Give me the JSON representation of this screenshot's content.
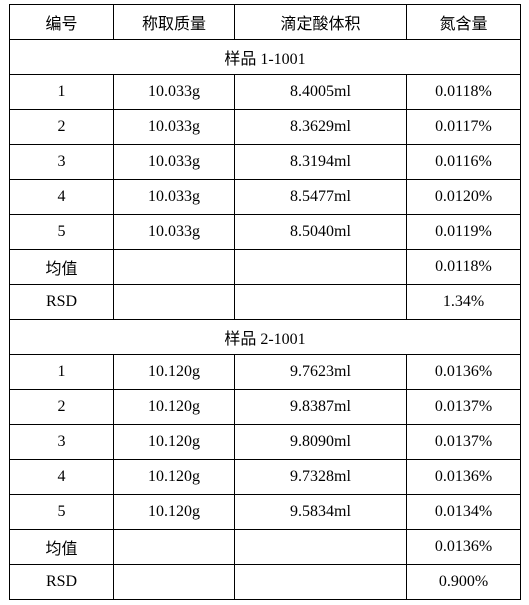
{
  "table": {
    "header": [
      "编号",
      "称取质量",
      "滴定酸体积",
      "氮含量"
    ],
    "sections": [
      {
        "title": "样品 1-1001",
        "rows": [
          [
            "1",
            "10.033g",
            "8.4005ml",
            "0.0118%"
          ],
          [
            "2",
            "10.033g",
            "8.3629ml",
            "0.0117%"
          ],
          [
            "3",
            "10.033g",
            "8.3194ml",
            "0.0116%"
          ],
          [
            "4",
            "10.033g",
            "8.5477ml",
            "0.0120%"
          ],
          [
            "5",
            "10.033g",
            "8.5040ml",
            "0.0119%"
          ],
          [
            "均值",
            null,
            null,
            "0.0118%"
          ],
          [
            "RSD",
            null,
            null,
            "1.34%"
          ]
        ]
      },
      {
        "title": "样品 2-1001",
        "rows": [
          [
            "1",
            "10.120g",
            "9.7623ml",
            "0.0136%"
          ],
          [
            "2",
            "10.120g",
            "9.8387ml",
            "0.0137%"
          ],
          [
            "3",
            "10.120g",
            "9.8090ml",
            "0.0137%"
          ],
          [
            "4",
            "10.120g",
            "9.7328ml",
            "0.0136%"
          ],
          [
            "5",
            "10.120g",
            "9.5834ml",
            "0.0134%"
          ],
          [
            "均值",
            null,
            null,
            "0.0136%"
          ],
          [
            "RSD",
            null,
            null,
            "0.900%"
          ]
        ]
      }
    ]
  }
}
